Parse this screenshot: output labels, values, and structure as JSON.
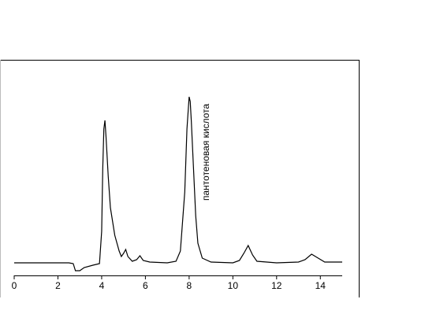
{
  "chart_data": {
    "type": "line",
    "annotation": "пантотеновая кислота",
    "x": [
      0,
      0.5,
      1,
      1.5,
      2,
      2.5,
      2.7,
      2.8,
      3.0,
      3.2,
      3.6,
      3.9,
      4.0,
      4.05,
      4.1,
      4.15,
      4.2,
      4.3,
      4.4,
      4.6,
      4.8,
      4.9,
      5.0,
      5.1,
      5.2,
      5.4,
      5.6,
      5.75,
      5.9,
      6.2,
      7.0,
      7.4,
      7.6,
      7.8,
      7.9,
      8.0,
      8.05,
      8.1,
      8.2,
      8.3,
      8.4,
      8.6,
      9.0,
      10.0,
      10.3,
      10.5,
      10.7,
      10.9,
      11.1,
      12.0,
      13.0,
      13.3,
      13.6,
      13.9,
      14.2,
      15.0
    ],
    "values": [
      0,
      0,
      0,
      0,
      0,
      0,
      -1,
      -10,
      -10,
      -6,
      -3,
      -1,
      40,
      120,
      170,
      181,
      160,
      110,
      70,
      35,
      15,
      8,
      12,
      17,
      8,
      2,
      4,
      9,
      3,
      1,
      0,
      2,
      15,
      90,
      170,
      211,
      205,
      180,
      120,
      60,
      25,
      6,
      1,
      0,
      3,
      12,
      22,
      10,
      2,
      0,
      1,
      4,
      11,
      6,
      1,
      1
    ],
    "color": "#000000",
    "xlim": [
      0,
      15
    ],
    "ylim": [
      -16,
      258
    ],
    "xticks": [
      0,
      2,
      4,
      6,
      8,
      10,
      12,
      14
    ]
  }
}
